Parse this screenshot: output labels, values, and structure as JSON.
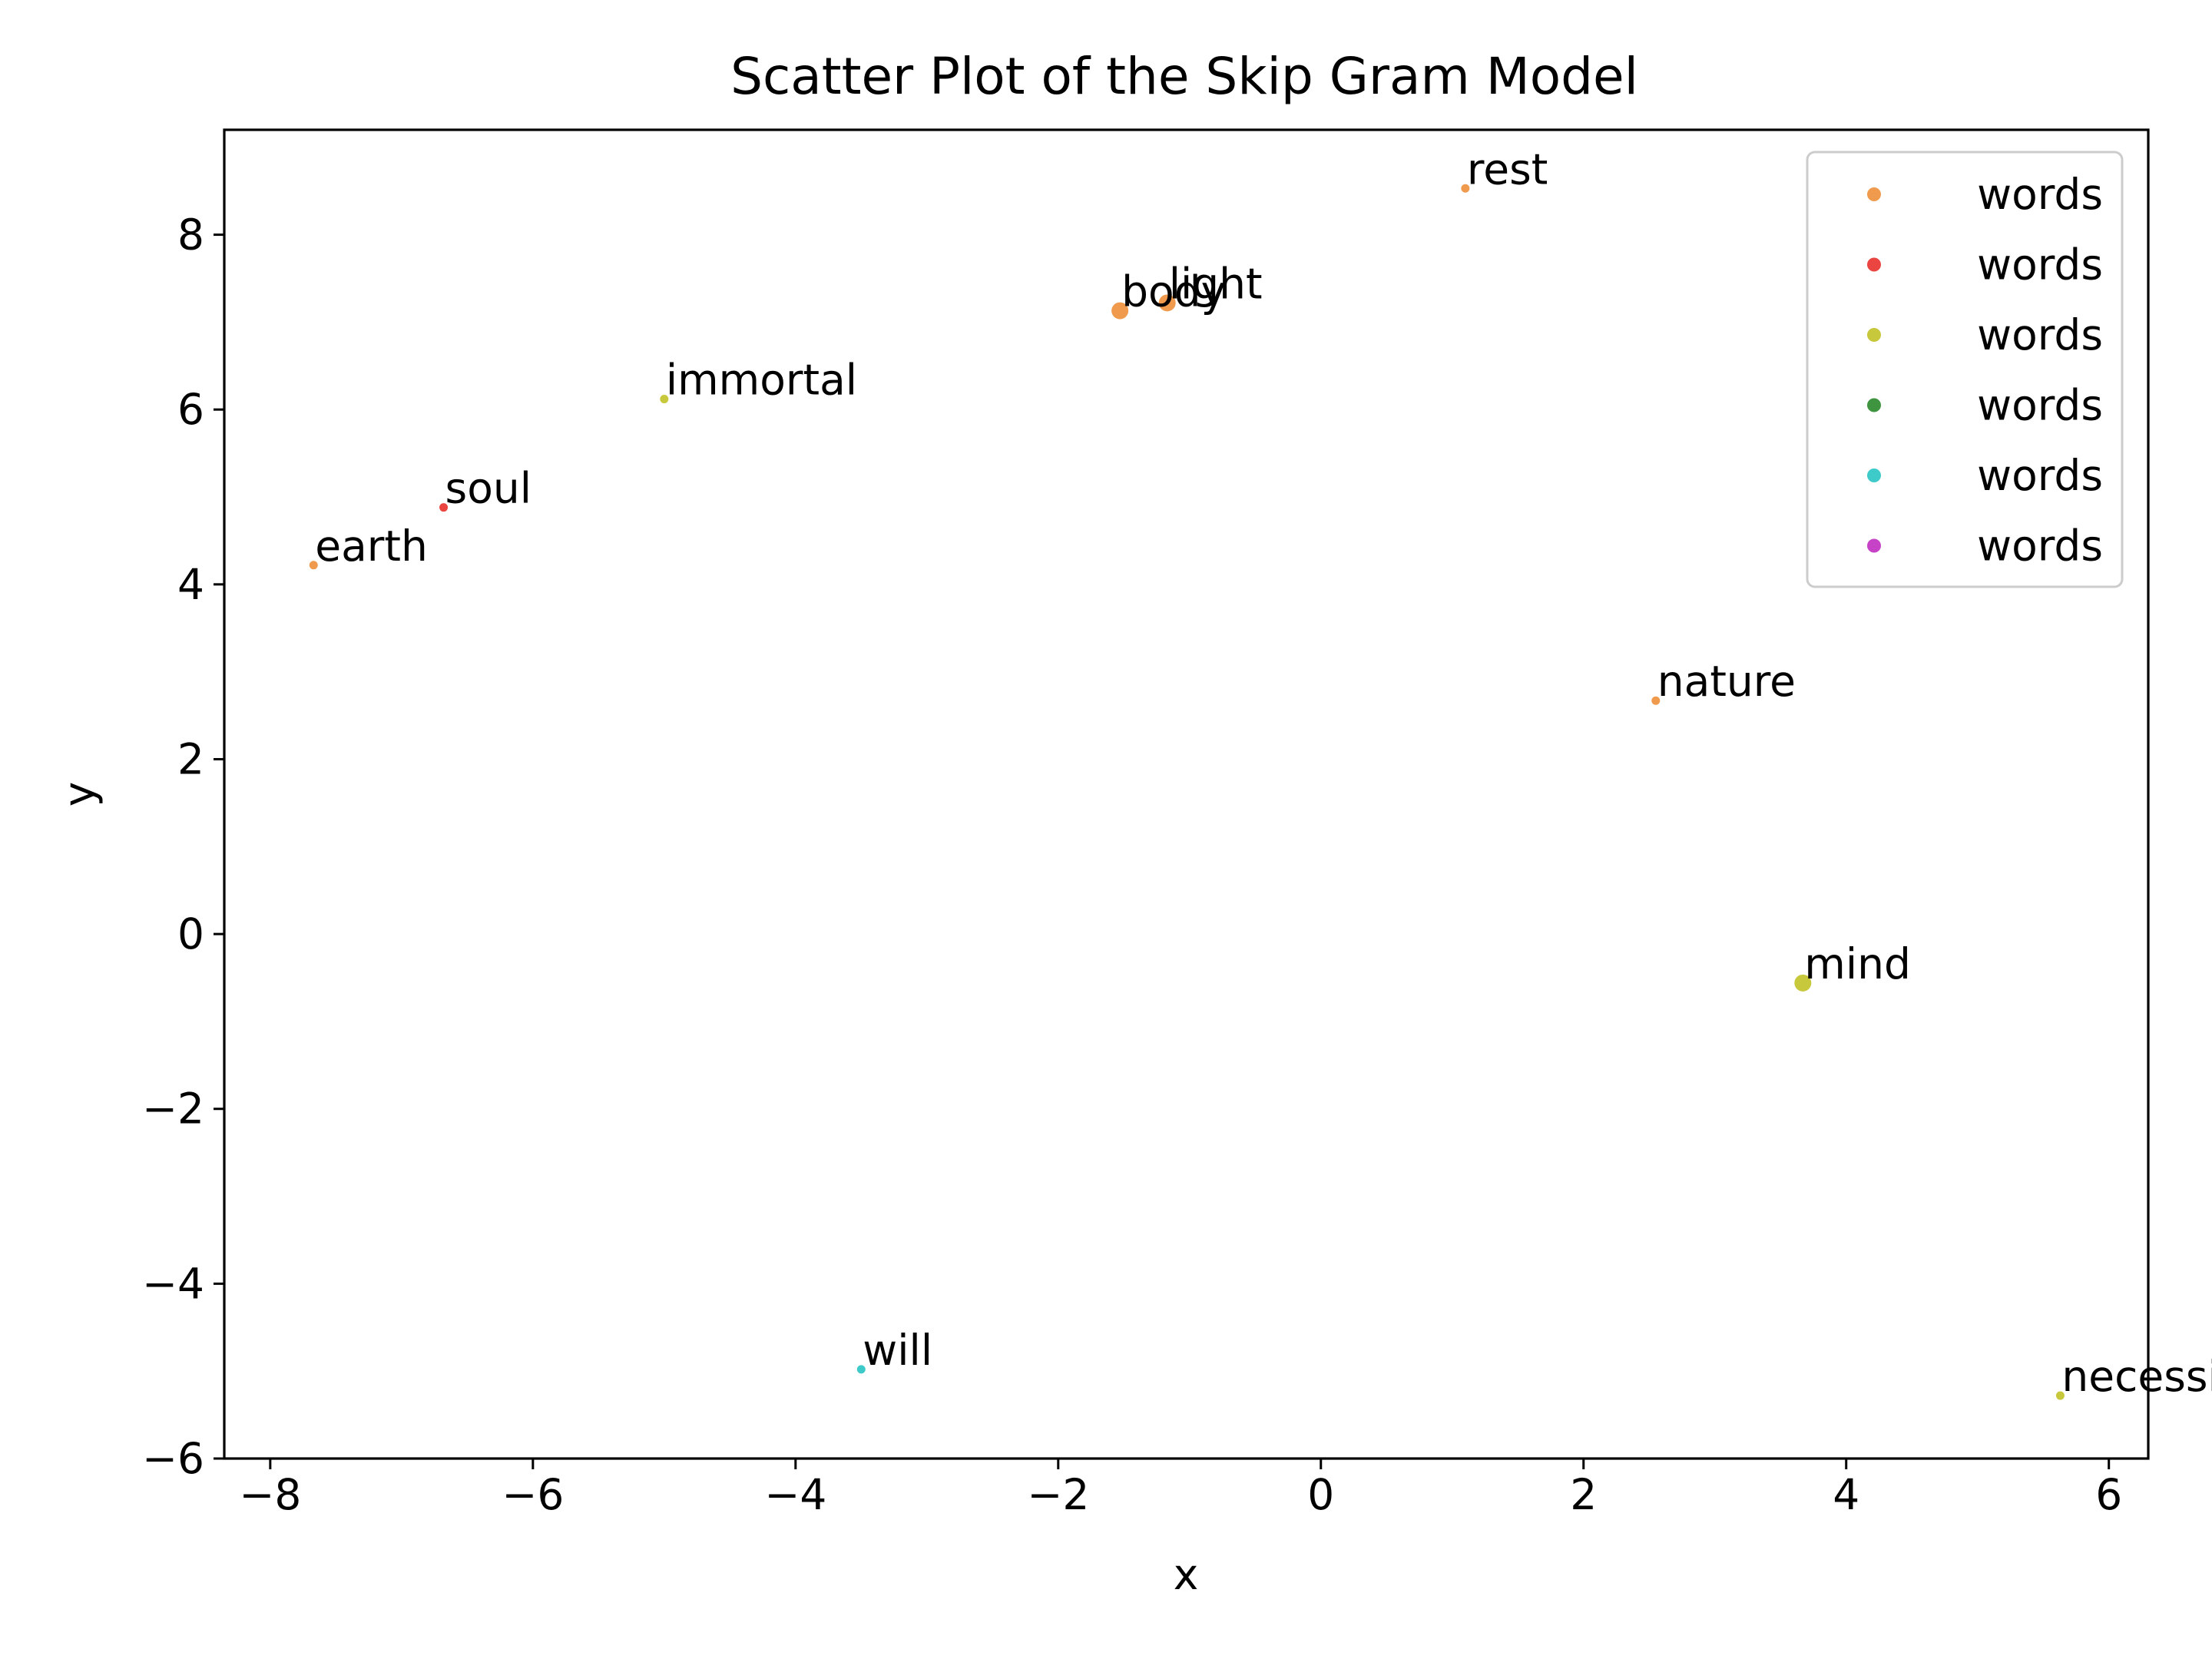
{
  "chart_data": {
    "type": "scatter",
    "title": "Scatter Plot of the Skip Gram Model",
    "xlabel": "x",
    "ylabel": "y",
    "xlim": [
      -8.35,
      6.3
    ],
    "ylim": [
      -6.0,
      9.2
    ],
    "xticks": [
      -8,
      -6,
      -4,
      -2,
      0,
      2,
      4,
      6
    ],
    "yticks": [
      -6,
      -4,
      -2,
      0,
      2,
      4,
      6,
      8
    ],
    "xtick_labels": [
      "−8",
      "−6",
      "−4",
      "−2",
      "0",
      "2",
      "4",
      "6"
    ],
    "ytick_labels": [
      "−6",
      "−4",
      "−2",
      "0",
      "2",
      "4",
      "6",
      "8"
    ],
    "grid": false,
    "legend_position": "top-right",
    "legend": [
      {
        "label": "words",
        "color": "#ee8f3a"
      },
      {
        "label": "words",
        "color": "#e8312c"
      },
      {
        "label": "words",
        "color": "#c2c227"
      },
      {
        "label": "words",
        "color": "#2a8a2a"
      },
      {
        "label": "words",
        "color": "#2ac4c4"
      },
      {
        "label": "words",
        "color": "#c02ec0"
      }
    ],
    "points": [
      {
        "label": "rest",
        "x": 1.1,
        "y": 8.53,
        "color": "#ee8f3a",
        "size": "small"
      },
      {
        "label": "body",
        "x": -1.53,
        "y": 7.13,
        "color": "#ee8f3a",
        "size": "large"
      },
      {
        "label": "light",
        "x": -1.17,
        "y": 7.22,
        "color": "#ee8f3a",
        "size": "large"
      },
      {
        "label": "immortal",
        "x": -5.0,
        "y": 6.12,
        "color": "#c2c227",
        "size": "small"
      },
      {
        "label": "soul",
        "x": -6.68,
        "y": 4.88,
        "color": "#e8312c",
        "size": "small"
      },
      {
        "label": "earth",
        "x": -7.67,
        "y": 4.22,
        "color": "#ee8f3a",
        "size": "small"
      },
      {
        "label": "nature",
        "x": 2.55,
        "y": 2.67,
        "color": "#ee8f3a",
        "size": "small"
      },
      {
        "label": "mind",
        "x": 3.67,
        "y": -0.56,
        "color": "#c2c227",
        "size": "large"
      },
      {
        "label": "will",
        "x": -3.5,
        "y": -4.98,
        "color": "#2ac4c4",
        "size": "small"
      },
      {
        "label": "necessity",
        "x": 5.63,
        "y": -5.28,
        "color": "#c2c227",
        "size": "small"
      }
    ]
  }
}
